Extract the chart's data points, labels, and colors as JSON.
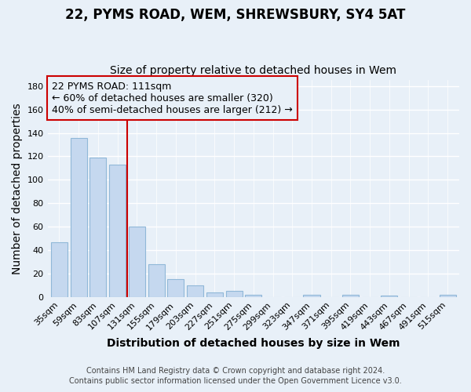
{
  "title": "22, PYMS ROAD, WEM, SHREWSBURY, SY4 5AT",
  "subtitle": "Size of property relative to detached houses in Wem",
  "xlabel": "Distribution of detached houses by size in Wem",
  "ylabel": "Number of detached properties",
  "footnote1": "Contains HM Land Registry data © Crown copyright and database right 2024.",
  "footnote2": "Contains public sector information licensed under the Open Government Licence v3.0.",
  "annotation_line1": "22 PYMS ROAD: 111sqm",
  "annotation_line2": "← 60% of detached houses are smaller (320)",
  "annotation_line3": "40% of semi-detached houses are larger (212) →",
  "categories": [
    "35sqm",
    "59sqm",
    "83sqm",
    "107sqm",
    "131sqm",
    "155sqm",
    "179sqm",
    "203sqm",
    "227sqm",
    "251sqm",
    "275sqm",
    "299sqm",
    "323sqm",
    "347sqm",
    "371sqm",
    "395sqm",
    "419sqm",
    "443sqm",
    "467sqm",
    "491sqm",
    "515sqm"
  ],
  "values": [
    47,
    136,
    119,
    113,
    60,
    28,
    15,
    10,
    4,
    5,
    2,
    0,
    0,
    2,
    0,
    2,
    0,
    1,
    0,
    0,
    2
  ],
  "bar_color": "#c5d8ef",
  "bar_edge_color": "#90b8d8",
  "vline_color": "#cc0000",
  "vline_x": 3.5,
  "ylim": [
    0,
    185
  ],
  "yticks": [
    0,
    20,
    40,
    60,
    80,
    100,
    120,
    140,
    160,
    180
  ],
  "bg_color": "#e8f0f8",
  "grid_color": "#ffffff",
  "title_fontsize": 12,
  "subtitle_fontsize": 10,
  "axis_label_fontsize": 10,
  "tick_fontsize": 8,
  "footnote_fontsize": 7,
  "annotation_fontsize": 9
}
